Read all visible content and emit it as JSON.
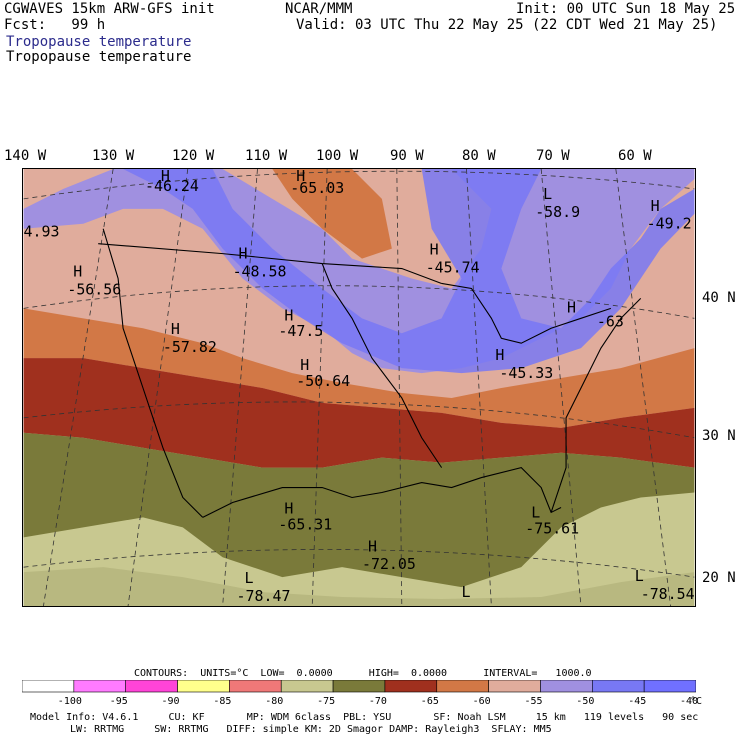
{
  "header": {
    "line1_left": "CGWAVES 15km ARW-GFS init",
    "line1_center": "NCAR/MMM",
    "line1_right": "Init: 00 UTC Sun 18 May 25",
    "line2_left": "Fcst:   99 h",
    "line2_right": "Valid: 03 UTC Thu 22 May 25 (22 CDT Wed 21 May 25)",
    "field_title_blue": "Tropopause temperature",
    "field_title_black": "Tropopause temperature"
  },
  "longitude_labels": [
    "140 W",
    "130 W",
    "120 W",
    "110 W",
    "100 W",
    "90 W",
    "80 W",
    "70 W",
    "60 W"
  ],
  "latitude_labels": [
    "40 N",
    "30 N",
    "20 N"
  ],
  "map_labels": [
    {
      "letter": "H",
      "value": "-46.24"
    },
    {
      "letter": "H",
      "value": "-65.03"
    },
    {
      "letter": "L",
      "value": "-58.9"
    },
    {
      "letter": "H",
      "value": "-49.2"
    },
    {
      "letter": "",
      "value": "4.93"
    },
    {
      "letter": "H",
      "value": "-48.58"
    },
    {
      "letter": "H",
      "value": "-45.74"
    },
    {
      "letter": "H",
      "value": "-56.56"
    },
    {
      "letter": "H",
      "value": "-47.5"
    },
    {
      "letter": "H",
      "value": "-57.82"
    },
    {
      "letter": "H",
      "value": "-63"
    },
    {
      "letter": "H",
      "value": "-50.64"
    },
    {
      "letter": "H",
      "value": "-45.33"
    },
    {
      "letter": "H",
      "value": "-65.31"
    },
    {
      "letter": "H",
      "value": "-72.05"
    },
    {
      "letter": "L",
      "value": "-75.61"
    },
    {
      "letter": "L",
      "value": "-78.47"
    },
    {
      "letter": "L",
      "value": ""
    },
    {
      "letter": "L",
      "value": "-78.54"
    }
  ],
  "contours": {
    "line": "CONTOURS:  UNITS=°C  LOW=  0.0000      HIGH=  0.0000      INTERVAL=   1000.0"
  },
  "colorbar": {
    "colors": [
      "#ffffff",
      "#ff7bff",
      "#ff44d8",
      "#ffff8c",
      "#f07878",
      "#c8c890",
      "#7a7a3a",
      "#a0301e",
      "#d27846",
      "#e0ac9c",
      "#a090e0",
      "#7878f4",
      "#7070ff"
    ],
    "labels": [
      "-100",
      "-95",
      "-90",
      "-85",
      "-80",
      "-75",
      "-70",
      "-65",
      "-60",
      "-55",
      "-50",
      "-45",
      "-40"
    ],
    "unit": "°C"
  },
  "model_info": {
    "line1": "Model Info: V4.6.1     CU: KF       MP: WDM 6class  PBL: YSU       SF: Noah LSM     15 km   119 levels   90 sec",
    "line2": "LW: RRTMG     SW: RRTMG   DIFF: simple KM: 2D Smagor DAMP: Rayleigh3  SFLAY: MM5"
  }
}
